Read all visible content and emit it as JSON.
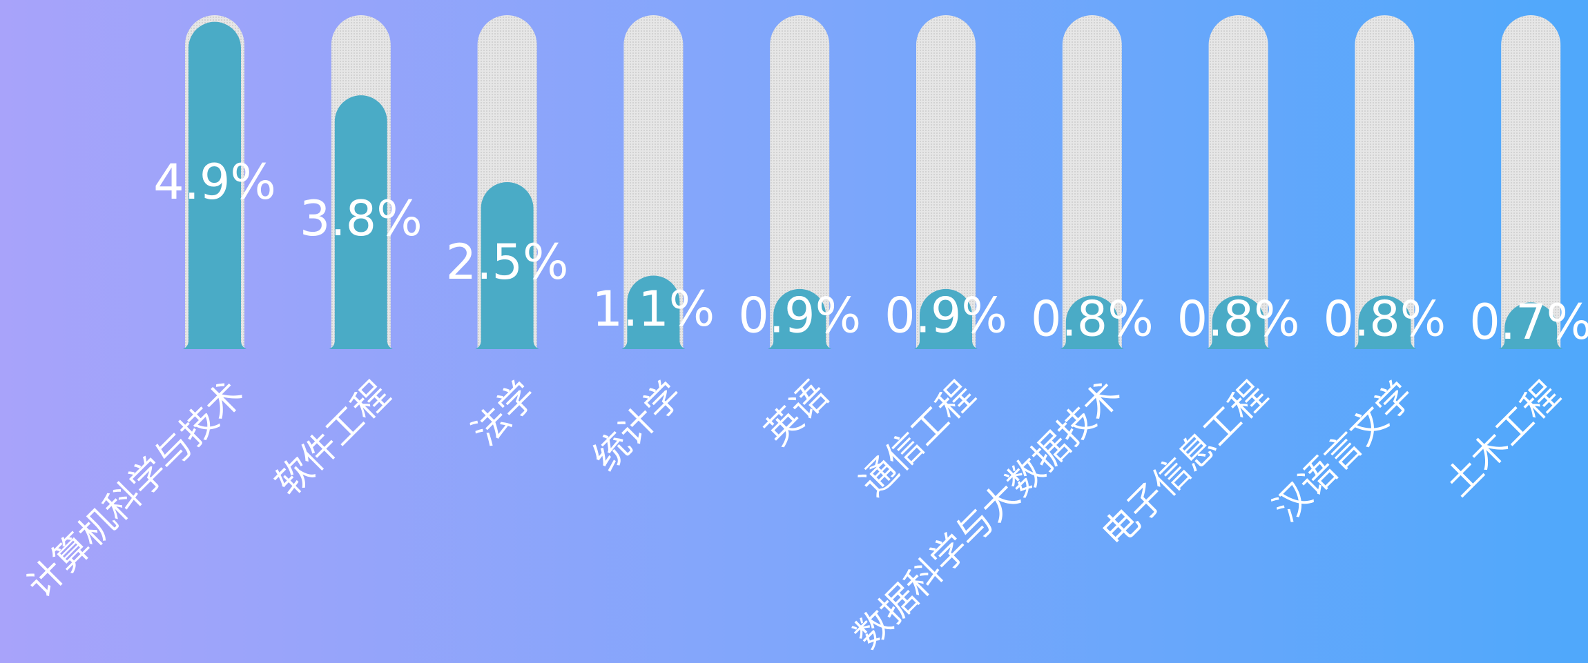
{
  "chart_data": {
    "type": "pictorial_bar",
    "categories": [
      "计算机科学与技术",
      "软件工程",
      "法学",
      "统计学",
      "英语",
      "通信工程",
      "数据科学与大数据技术",
      "电子信息工程",
      "汉语言文学",
      "土木工程"
    ],
    "values": [
      4.9,
      3.8,
      2.5,
      1.1,
      0.9,
      0.9,
      0.8,
      0.8,
      0.8,
      0.7
    ],
    "value_labels": [
      "4.9%",
      "3.8%",
      "2.5%",
      "1.1%",
      "0.9%",
      "0.9%",
      "0.8%",
      "0.8%",
      "0.8%",
      "0.7%"
    ],
    "color": "#4aabc6",
    "ylim": [
      0,
      5
    ]
  }
}
